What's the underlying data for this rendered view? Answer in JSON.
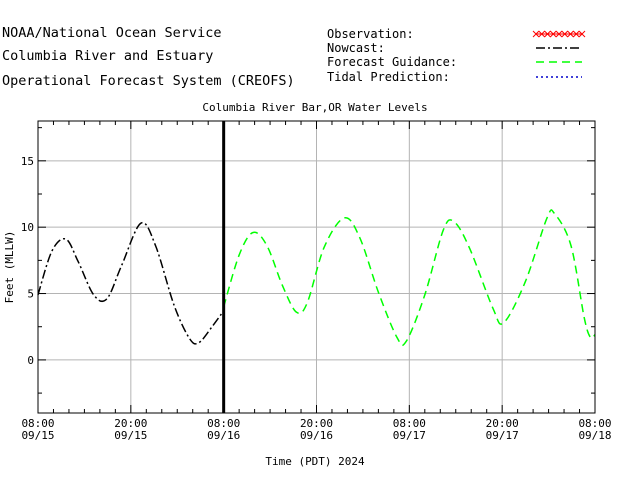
{
  "header": {
    "line1": "NOAA/National Ocean Service",
    "line2": "Columbia River and Estuary",
    "line3": "Operational Forecast System (CREOFS)"
  },
  "legend": {
    "observation": "Observation:",
    "nowcast": "Nowcast:",
    "forecast": "Forecast Guidance:",
    "tidal": "Tidal Prediction:"
  },
  "colors": {
    "observation": "#ff0000",
    "nowcast": "#000000",
    "forecast": "#00ff00",
    "tidal": "#0000cc",
    "grid": "#b4b4b4",
    "now_line": "#000000"
  },
  "chart_data": {
    "type": "line",
    "title": "Columbia River Bar,OR Water Levels",
    "xlabel": "Time (PDT) 2024",
    "ylabel": "Feet (MLLW)",
    "xlim": [
      0,
      72
    ],
    "ylim": [
      -4,
      18
    ],
    "x_unit": "hours since 09/15 08:00 PDT",
    "now_marker_x": 24,
    "grid": true,
    "legend_position": "top-right",
    "x_ticks": [
      {
        "x": 0,
        "time": "08:00",
        "date": "09/15"
      },
      {
        "x": 12,
        "time": "20:00",
        "date": "09/15"
      },
      {
        "x": 24,
        "time": "08:00",
        "date": "09/16"
      },
      {
        "x": 36,
        "time": "20:00",
        "date": "09/16"
      },
      {
        "x": 48,
        "time": "08:00",
        "date": "09/17"
      },
      {
        "x": 60,
        "time": "20:00",
        "date": "09/17"
      },
      {
        "x": 72,
        "time": "08:00",
        "date": "09/18"
      }
    ],
    "y_ticks": [
      0,
      5,
      10,
      15
    ],
    "series": [
      {
        "name": "Nowcast",
        "style": "dash-dot",
        "points": [
          [
            0,
            4.9
          ],
          [
            1.8,
            8.2
          ],
          [
            3.6,
            9.1
          ],
          [
            5.2,
            7.4
          ],
          [
            7.2,
            4.9
          ],
          [
            8.9,
            4.6
          ],
          [
            10.8,
            7.1
          ],
          [
            13.3,
            10.3
          ],
          [
            15.2,
            8.6
          ],
          [
            17.6,
            4.1
          ],
          [
            19.6,
            1.6
          ],
          [
            20.8,
            1.3
          ],
          [
            22.5,
            2.5
          ],
          [
            24,
            3.7
          ]
        ]
      },
      {
        "name": "Forecast Guidance",
        "style": "dashed",
        "points": [
          [
            24,
            4.0
          ],
          [
            26,
            7.9
          ],
          [
            27.8,
            9.6
          ],
          [
            29.6,
            8.6
          ],
          [
            31.6,
            5.6
          ],
          [
            33.4,
            3.6
          ],
          [
            34.8,
            4.3
          ],
          [
            37,
            8.5
          ],
          [
            39.6,
            10.7
          ],
          [
            41.6,
            9.2
          ],
          [
            44,
            5.1
          ],
          [
            46.4,
            1.7
          ],
          [
            47.6,
            1.4
          ],
          [
            50,
            4.9
          ],
          [
            52.4,
            9.8
          ],
          [
            53.8,
            10.4
          ],
          [
            55.8,
            8.4
          ],
          [
            58.8,
            3.9
          ],
          [
            60.2,
            2.8
          ],
          [
            63,
            5.9
          ],
          [
            65.8,
            10.7
          ],
          [
            66.8,
            11.0
          ],
          [
            68.9,
            8.6
          ],
          [
            70.6,
            3.2
          ],
          [
            71.4,
            1.7
          ],
          [
            72,
            1.9
          ]
        ]
      }
    ]
  }
}
